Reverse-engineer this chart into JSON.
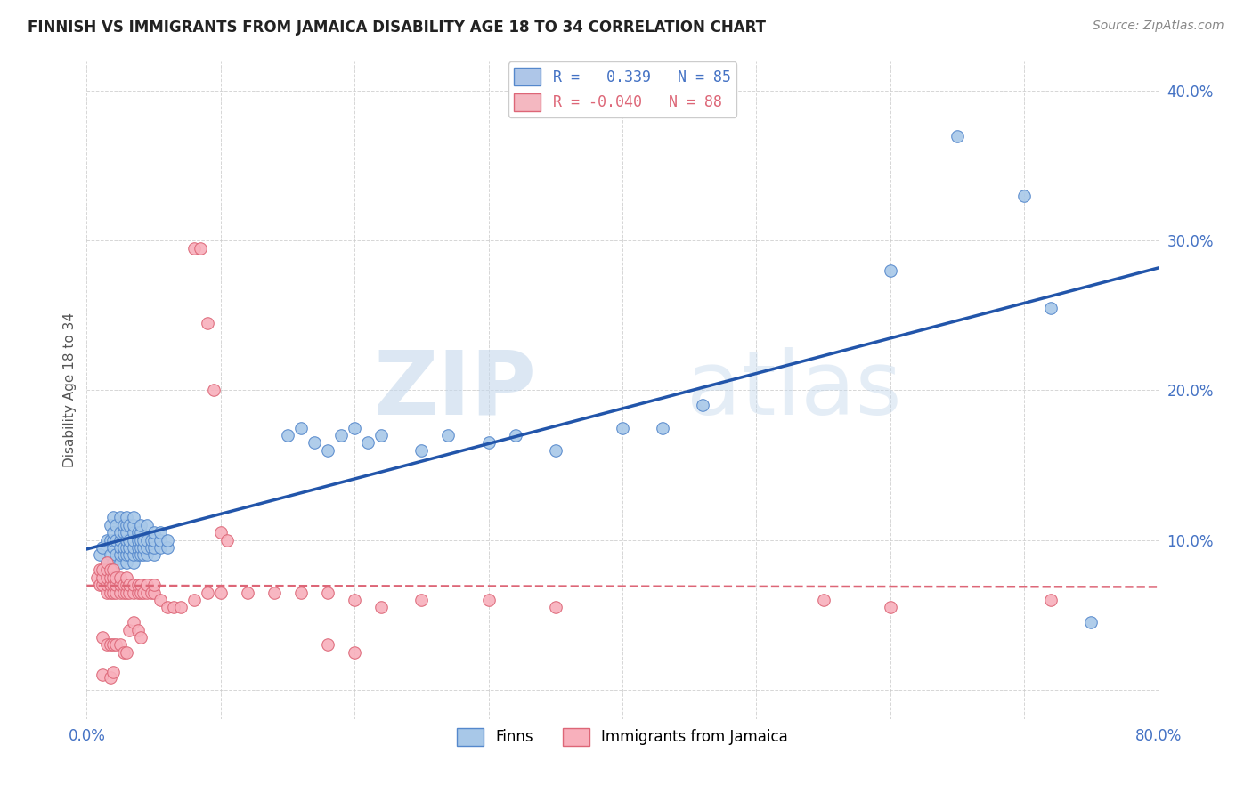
{
  "title": "FINNISH VS IMMIGRANTS FROM JAMAICA DISABILITY AGE 18 TO 34 CORRELATION CHART",
  "source": "Source: ZipAtlas.com",
  "ylabel": "Disability Age 18 to 34",
  "x_min": 0.0,
  "x_max": 0.8,
  "y_min": -0.02,
  "y_max": 0.42,
  "x_ticks": [
    0.0,
    0.1,
    0.2,
    0.3,
    0.4,
    0.5,
    0.6,
    0.7,
    0.8
  ],
  "y_ticks": [
    0.0,
    0.1,
    0.2,
    0.3,
    0.4
  ],
  "finns_color": "#a8c8e8",
  "finns_edge_color": "#5588cc",
  "jamaica_color": "#f8b0bc",
  "jamaica_edge_color": "#dd6677",
  "trend_finns_color": "#2255aa",
  "trend_jamaica_color": "#dd6677",
  "watermark_zip": "ZIP",
  "watermark_atlas": "atlas",
  "scatter_finns": [
    [
      0.01,
      0.09
    ],
    [
      0.012,
      0.095
    ],
    [
      0.015,
      0.085
    ],
    [
      0.015,
      0.1
    ],
    [
      0.018,
      0.09
    ],
    [
      0.018,
      0.1
    ],
    [
      0.018,
      0.11
    ],
    [
      0.02,
      0.085
    ],
    [
      0.02,
      0.095
    ],
    [
      0.02,
      0.1
    ],
    [
      0.02,
      0.105
    ],
    [
      0.02,
      0.115
    ],
    [
      0.022,
      0.09
    ],
    [
      0.022,
      0.1
    ],
    [
      0.022,
      0.11
    ],
    [
      0.025,
      0.085
    ],
    [
      0.025,
      0.09
    ],
    [
      0.025,
      0.095
    ],
    [
      0.025,
      0.1
    ],
    [
      0.025,
      0.105
    ],
    [
      0.025,
      0.115
    ],
    [
      0.028,
      0.09
    ],
    [
      0.028,
      0.095
    ],
    [
      0.028,
      0.105
    ],
    [
      0.028,
      0.11
    ],
    [
      0.03,
      0.085
    ],
    [
      0.03,
      0.09
    ],
    [
      0.03,
      0.095
    ],
    [
      0.03,
      0.1
    ],
    [
      0.03,
      0.105
    ],
    [
      0.03,
      0.11
    ],
    [
      0.03,
      0.115
    ],
    [
      0.032,
      0.09
    ],
    [
      0.032,
      0.095
    ],
    [
      0.032,
      0.1
    ],
    [
      0.032,
      0.11
    ],
    [
      0.035,
      0.085
    ],
    [
      0.035,
      0.09
    ],
    [
      0.035,
      0.095
    ],
    [
      0.035,
      0.1
    ],
    [
      0.035,
      0.105
    ],
    [
      0.035,
      0.11
    ],
    [
      0.035,
      0.115
    ],
    [
      0.038,
      0.09
    ],
    [
      0.038,
      0.095
    ],
    [
      0.038,
      0.1
    ],
    [
      0.038,
      0.105
    ],
    [
      0.04,
      0.09
    ],
    [
      0.04,
      0.095
    ],
    [
      0.04,
      0.1
    ],
    [
      0.04,
      0.105
    ],
    [
      0.04,
      0.11
    ],
    [
      0.042,
      0.09
    ],
    [
      0.042,
      0.095
    ],
    [
      0.042,
      0.1
    ],
    [
      0.045,
      0.09
    ],
    [
      0.045,
      0.095
    ],
    [
      0.045,
      0.1
    ],
    [
      0.045,
      0.11
    ],
    [
      0.048,
      0.095
    ],
    [
      0.048,
      0.1
    ],
    [
      0.05,
      0.09
    ],
    [
      0.05,
      0.095
    ],
    [
      0.05,
      0.1
    ],
    [
      0.05,
      0.105
    ],
    [
      0.055,
      0.095
    ],
    [
      0.055,
      0.1
    ],
    [
      0.055,
      0.105
    ],
    [
      0.06,
      0.095
    ],
    [
      0.06,
      0.1
    ],
    [
      0.15,
      0.17
    ],
    [
      0.16,
      0.175
    ],
    [
      0.17,
      0.165
    ],
    [
      0.18,
      0.16
    ],
    [
      0.19,
      0.17
    ],
    [
      0.2,
      0.175
    ],
    [
      0.21,
      0.165
    ],
    [
      0.22,
      0.17
    ],
    [
      0.25,
      0.16
    ],
    [
      0.27,
      0.17
    ],
    [
      0.3,
      0.165
    ],
    [
      0.32,
      0.17
    ],
    [
      0.35,
      0.16
    ],
    [
      0.4,
      0.175
    ],
    [
      0.43,
      0.175
    ],
    [
      0.46,
      0.19
    ],
    [
      0.6,
      0.28
    ],
    [
      0.65,
      0.37
    ],
    [
      0.7,
      0.33
    ],
    [
      0.72,
      0.255
    ],
    [
      0.75,
      0.045
    ]
  ],
  "scatter_jamaica": [
    [
      0.008,
      0.075
    ],
    [
      0.01,
      0.07
    ],
    [
      0.01,
      0.08
    ],
    [
      0.012,
      0.07
    ],
    [
      0.012,
      0.075
    ],
    [
      0.012,
      0.08
    ],
    [
      0.015,
      0.065
    ],
    [
      0.015,
      0.07
    ],
    [
      0.015,
      0.075
    ],
    [
      0.015,
      0.08
    ],
    [
      0.015,
      0.085
    ],
    [
      0.018,
      0.065
    ],
    [
      0.018,
      0.07
    ],
    [
      0.018,
      0.075
    ],
    [
      0.018,
      0.08
    ],
    [
      0.02,
      0.065
    ],
    [
      0.02,
      0.07
    ],
    [
      0.02,
      0.075
    ],
    [
      0.02,
      0.08
    ],
    [
      0.022,
      0.065
    ],
    [
      0.022,
      0.07
    ],
    [
      0.022,
      0.075
    ],
    [
      0.025,
      0.065
    ],
    [
      0.025,
      0.07
    ],
    [
      0.025,
      0.075
    ],
    [
      0.028,
      0.065
    ],
    [
      0.028,
      0.07
    ],
    [
      0.03,
      0.065
    ],
    [
      0.03,
      0.07
    ],
    [
      0.03,
      0.075
    ],
    [
      0.032,
      0.065
    ],
    [
      0.032,
      0.07
    ],
    [
      0.035,
      0.065
    ],
    [
      0.035,
      0.07
    ],
    [
      0.038,
      0.065
    ],
    [
      0.038,
      0.07
    ],
    [
      0.04,
      0.065
    ],
    [
      0.04,
      0.07
    ],
    [
      0.042,
      0.065
    ],
    [
      0.045,
      0.065
    ],
    [
      0.045,
      0.07
    ],
    [
      0.048,
      0.065
    ],
    [
      0.05,
      0.065
    ],
    [
      0.05,
      0.07
    ],
    [
      0.012,
      0.035
    ],
    [
      0.015,
      0.03
    ],
    [
      0.018,
      0.03
    ],
    [
      0.02,
      0.03
    ],
    [
      0.022,
      0.03
    ],
    [
      0.025,
      0.03
    ],
    [
      0.028,
      0.025
    ],
    [
      0.03,
      0.025
    ],
    [
      0.032,
      0.04
    ],
    [
      0.035,
      0.045
    ],
    [
      0.038,
      0.04
    ],
    [
      0.04,
      0.035
    ],
    [
      0.055,
      0.06
    ],
    [
      0.06,
      0.055
    ],
    [
      0.065,
      0.055
    ],
    [
      0.07,
      0.055
    ],
    [
      0.08,
      0.06
    ],
    [
      0.09,
      0.065
    ],
    [
      0.1,
      0.065
    ],
    [
      0.012,
      0.01
    ],
    [
      0.018,
      0.008
    ],
    [
      0.02,
      0.012
    ],
    [
      0.08,
      0.295
    ],
    [
      0.085,
      0.295
    ],
    [
      0.09,
      0.245
    ],
    [
      0.095,
      0.2
    ],
    [
      0.1,
      0.105
    ],
    [
      0.105,
      0.1
    ],
    [
      0.12,
      0.065
    ],
    [
      0.14,
      0.065
    ],
    [
      0.16,
      0.065
    ],
    [
      0.18,
      0.065
    ],
    [
      0.2,
      0.06
    ],
    [
      0.22,
      0.055
    ],
    [
      0.25,
      0.06
    ],
    [
      0.3,
      0.06
    ],
    [
      0.35,
      0.055
    ],
    [
      0.18,
      0.03
    ],
    [
      0.2,
      0.025
    ],
    [
      0.55,
      0.06
    ],
    [
      0.6,
      0.055
    ],
    [
      0.72,
      0.06
    ]
  ]
}
